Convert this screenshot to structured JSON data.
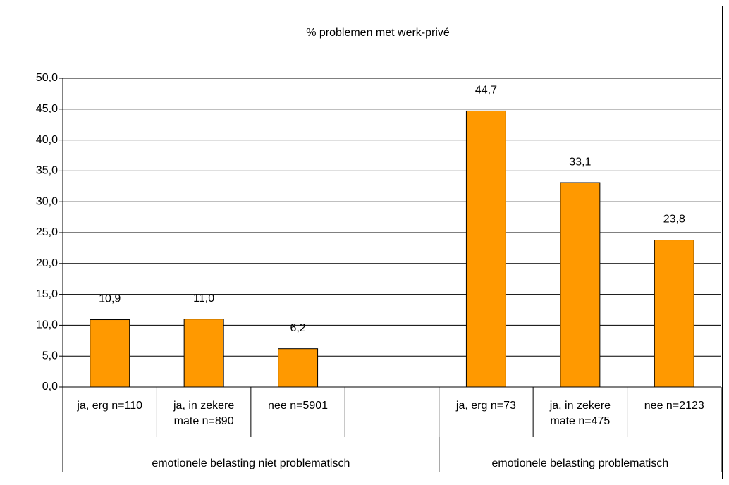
{
  "chart_data": {
    "type": "bar",
    "title": "% problemen met werk-privé",
    "categories": [
      "ja, erg n=110",
      "ja, in zekere mate n=890",
      "nee n=5901",
      null,
      "ja, erg n=73",
      "ja, in zekere mate n=475",
      "nee n=2123"
    ],
    "values": [
      10.9,
      11.0,
      6.2,
      null,
      44.7,
      33.1,
      23.8
    ],
    "value_labels": [
      "10,9",
      "11,0",
      "6,2",
      null,
      "44,7",
      "33,1",
      "23,8"
    ],
    "groups": [
      "emotionele belasting niet problematisch",
      "emotionele belasting problematisch"
    ],
    "color": "#ff9900",
    "ylim": [
      0,
      50
    ],
    "yticks": [
      {
        "value": 0,
        "label": "0,0"
      },
      {
        "value": 5,
        "label": "5,0"
      },
      {
        "value": 10,
        "label": "10,0"
      },
      {
        "value": 15,
        "label": "15,0"
      },
      {
        "value": 20,
        "label": "20,0"
      },
      {
        "value": 25,
        "label": "25,0"
      },
      {
        "value": 30,
        "label": "30,0"
      },
      {
        "value": 35,
        "label": "35,0"
      },
      {
        "value": 40,
        "label": "40,0"
      },
      {
        "value": 45,
        "label": "45,0"
      },
      {
        "value": 50,
        "label": "50,0"
      }
    ],
    "grid": true
  }
}
